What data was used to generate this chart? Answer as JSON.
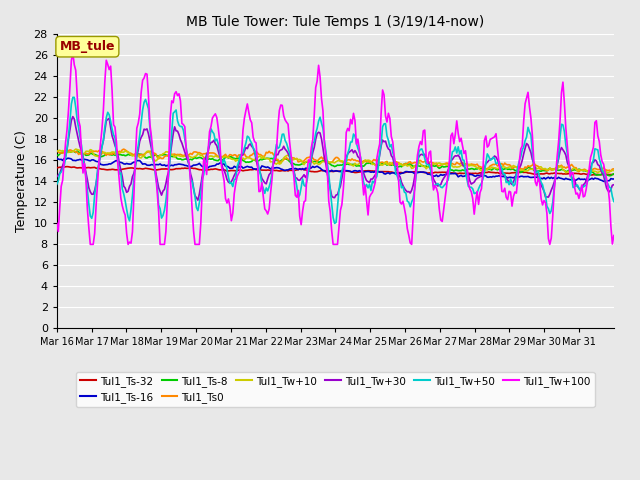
{
  "title": "MB Tule Tower: Tule Temps 1 (3/19/14-now)",
  "ylabel": "Temperature (C)",
  "ylim": [
    0,
    28
  ],
  "yticks": [
    0,
    2,
    4,
    6,
    8,
    10,
    12,
    14,
    16,
    18,
    20,
    22,
    24,
    26,
    28
  ],
  "x_tick_labels": [
    "Mar 16",
    "Mar 17",
    "Mar 18",
    "Mar 19",
    "Mar 20",
    "Mar 21",
    "Mar 22",
    "Mar 23",
    "Mar 24",
    "Mar 25",
    "Mar 26",
    "Mar 27",
    "Mar 28",
    "Mar 29",
    "Mar 30",
    "Mar 31"
  ],
  "plot_bg_color": "#e8e8e8",
  "grid_color": "#ffffff",
  "series": [
    {
      "label": "Tul1_Ts-32",
      "color": "#cc0000",
      "lw": 1.2
    },
    {
      "label": "Tul1_Ts-16",
      "color": "#0000cc",
      "lw": 1.2
    },
    {
      "label": "Tul1_Ts-8",
      "color": "#00cc00",
      "lw": 1.2
    },
    {
      "label": "Tul1_Ts0",
      "color": "#ff8800",
      "lw": 1.2
    },
    {
      "label": "Tul1_Tw+10",
      "color": "#cccc00",
      "lw": 1.2
    },
    {
      "label": "Tul1_Tw+30",
      "color": "#9900cc",
      "lw": 1.2
    },
    {
      "label": "Tul1_Tw+50",
      "color": "#00cccc",
      "lw": 1.2
    },
    {
      "label": "Tul1_Tw+100",
      "color": "#ff00ff",
      "lw": 1.2
    }
  ],
  "legend_box_color": "#ffff99",
  "legend_box_text": "MB_tule",
  "legend_box_text_color": "#990000"
}
